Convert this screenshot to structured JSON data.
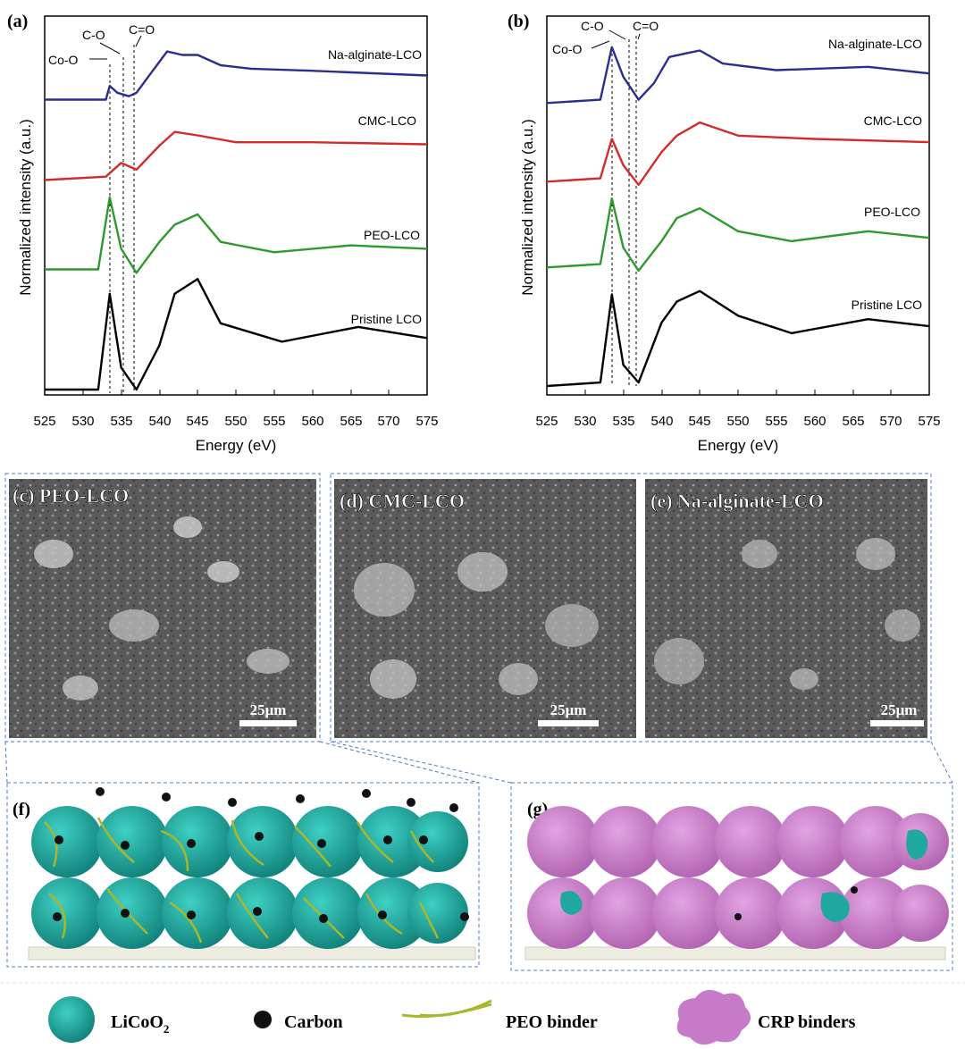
{
  "panel_a": {
    "letter": "(a)",
    "ylabel": "Normalized intensity (a.u.)",
    "xlabel": "Energy (eV)",
    "xticks": [
      "525",
      "530",
      "535",
      "540",
      "545",
      "550",
      "555",
      "560",
      "565",
      "570",
      "575"
    ],
    "annotations": [
      "Co-O",
      "C-O",
      "C=O"
    ],
    "series": [
      "Na-alginate-LCO",
      "CMC-LCO",
      "PEO-LCO",
      "Pristine LCO"
    ]
  },
  "panel_b": {
    "letter": "(b)",
    "ylabel": "Normalized intensity (a.u.)",
    "xlabel": "Energy (eV)",
    "xticks": [
      "525",
      "530",
      "535",
      "540",
      "545",
      "550",
      "555",
      "560",
      "565",
      "570",
      "575"
    ],
    "annotations": [
      "Co-O",
      "C-O",
      "C=O"
    ],
    "series": [
      "Na-alginate-LCO",
      "CMC-LCO",
      "PEO-LCO",
      "Pristine LCO"
    ]
  },
  "sem": {
    "c": {
      "label": "(c) PEO-LCO",
      "scale": "25μm"
    },
    "d": {
      "label": "(d) CMC-LCO",
      "scale": "25μm"
    },
    "e": {
      "label": "(e) Na-alginate-LCO",
      "scale": "25μm"
    }
  },
  "schematic": {
    "f": "(f)",
    "g": "(g)"
  },
  "legend": {
    "licoo2": "LiCoO",
    "licoo2_sub": "2",
    "carbon": "Carbon",
    "peo": "PEO binder",
    "crp": "CRP binders"
  },
  "colors": {
    "na_alginate": "#2b2c8f",
    "cmc": "#d42a2a",
    "peo": "#2e9a2e",
    "pristine": "#000000",
    "licoo2": "#1fa8a0",
    "crp": "#c77ac7",
    "frame": "#4f7cc4"
  },
  "chart_data": [
    {
      "type": "line",
      "xlabel": "Energy (eV)",
      "ylabel": "Normalized intensity (a.u.)",
      "xlim": [
        525,
        575
      ],
      "series": [
        {
          "name": "Na-alginate-LCO",
          "x": [
            525,
            533,
            533.5,
            534.5,
            536,
            537,
            539,
            541,
            543,
            545,
            548,
            552,
            560,
            575
          ],
          "values": [
            0.5,
            0.5,
            0.7,
            0.6,
            0.55,
            0.6,
            0.9,
            1.2,
            1.15,
            1.15,
            1.0,
            0.95,
            0.92,
            0.85
          ]
        },
        {
          "name": "CMC-LCO",
          "x": [
            525,
            533,
            535,
            537,
            540,
            542,
            545,
            550,
            560,
            575
          ],
          "values": [
            0.5,
            0.55,
            0.75,
            0.65,
            1.0,
            1.2,
            1.15,
            1.05,
            1.05,
            1.02
          ]
        },
        {
          "name": "PEO-LCO",
          "x": [
            525,
            532,
            533.5,
            535,
            537,
            540,
            542,
            545,
            548,
            555,
            565,
            575
          ],
          "values": [
            0.5,
            0.5,
            1.55,
            0.8,
            0.45,
            0.9,
            1.15,
            1.3,
            0.9,
            0.75,
            0.85,
            0.8
          ]
        },
        {
          "name": "Pristine LCO",
          "x": [
            525,
            532,
            533.5,
            535,
            537,
            540,
            542,
            545,
            548,
            556,
            566,
            575
          ],
          "values": [
            0.0,
            0.0,
            1.3,
            0.3,
            0.0,
            0.6,
            1.3,
            1.5,
            0.9,
            0.65,
            0.85,
            0.7
          ]
        }
      ]
    },
    {
      "type": "line",
      "xlabel": "Energy (eV)",
      "ylabel": "Normalized intensity (a.u.)",
      "xlim": [
        525,
        575
      ],
      "series": [
        {
          "name": "Na-alginate-LCO",
          "x": [
            525,
            532,
            533.5,
            535,
            537,
            539,
            541,
            543,
            545,
            548,
            555,
            567,
            575
          ],
          "values": [
            0.5,
            0.55,
            1.35,
            0.9,
            0.55,
            0.8,
            1.2,
            1.25,
            1.3,
            1.1,
            1.0,
            1.05,
            0.95
          ]
        },
        {
          "name": "CMC-LCO",
          "x": [
            525,
            532,
            533.5,
            535,
            537,
            540,
            542,
            545,
            550,
            560,
            575
          ],
          "values": [
            0.5,
            0.55,
            1.15,
            0.75,
            0.45,
            0.95,
            1.2,
            1.4,
            1.2,
            1.15,
            1.1
          ]
        },
        {
          "name": "PEO-LCO",
          "x": [
            525,
            532,
            533.5,
            535,
            537,
            540,
            542,
            545,
            550,
            557,
            567,
            575
          ],
          "values": [
            0.5,
            0.55,
            1.55,
            0.8,
            0.45,
            0.9,
            1.25,
            1.4,
            1.05,
            0.9,
            1.05,
            0.95
          ]
        },
        {
          "name": "Pristine LCO",
          "x": [
            525,
            532,
            533.5,
            535,
            537,
            540,
            542,
            545,
            550,
            557,
            567,
            575
          ],
          "values": [
            0.0,
            0.05,
            1.3,
            0.3,
            0.05,
            0.9,
            1.2,
            1.35,
            1.0,
            0.75,
            0.95,
            0.85
          ]
        }
      ]
    }
  ]
}
